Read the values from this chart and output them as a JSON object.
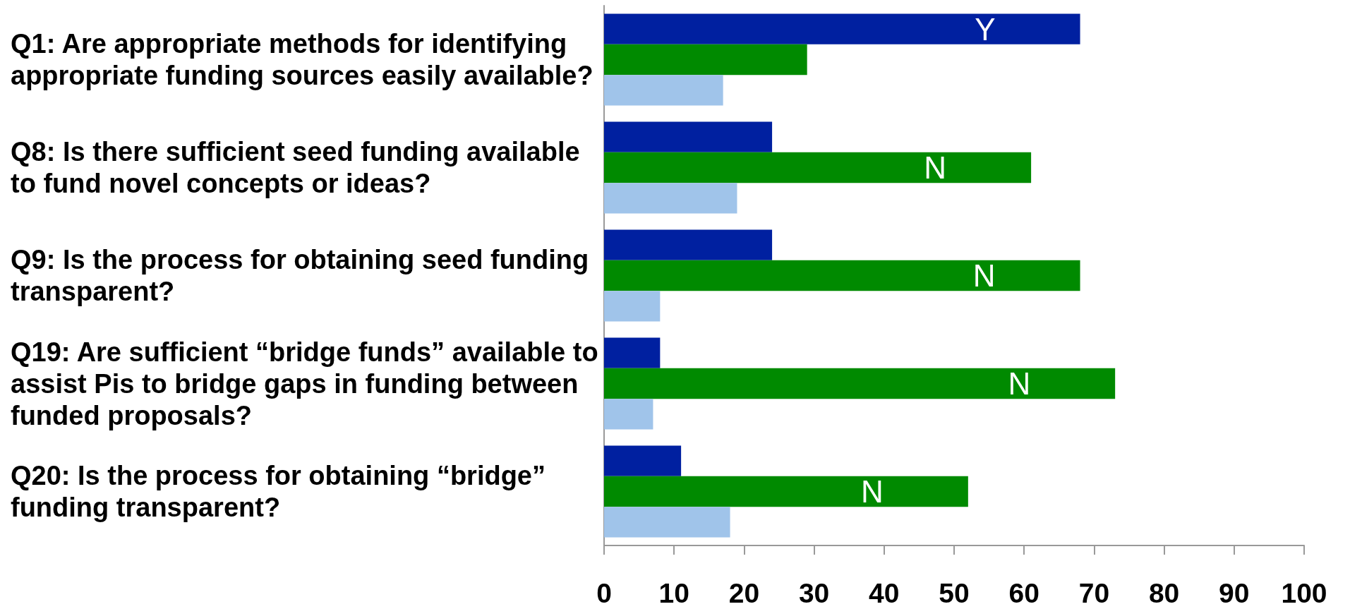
{
  "chart_data": {
    "type": "bar",
    "orientation": "horizontal",
    "categories": [
      "Q1: Are appropriate methods for identifying appropriate funding sources easily available?",
      "Q8: Is there sufficient seed funding available to fund novel concepts or ideas?",
      "Q9: Is the process for obtaining seed funding transparent?",
      "Q19: Are sufficient “bridge funds” available to assist Pis to bridge gaps in funding between funded proposals?",
      "Q20: Is the process for obtaining “bridge” funding transparent?"
    ],
    "series": [
      {
        "color": "#0020a0",
        "values": [
          68,
          24,
          24,
          8,
          11
        ],
        "value_labels": [
          "Y",
          null,
          null,
          null,
          null
        ]
      },
      {
        "color": "#008a00",
        "values": [
          29,
          61,
          68,
          73,
          52
        ],
        "value_labels": [
          null,
          "N",
          "N",
          "N",
          "N"
        ]
      },
      {
        "color": "#a0c4ea",
        "values": [
          17,
          19,
          8,
          7,
          18
        ]
      }
    ],
    "xlim": [
      0,
      100
    ],
    "xticks": [
      0,
      10,
      20,
      30,
      40,
      50,
      60,
      70,
      80,
      90,
      100
    ],
    "grid": false
  }
}
